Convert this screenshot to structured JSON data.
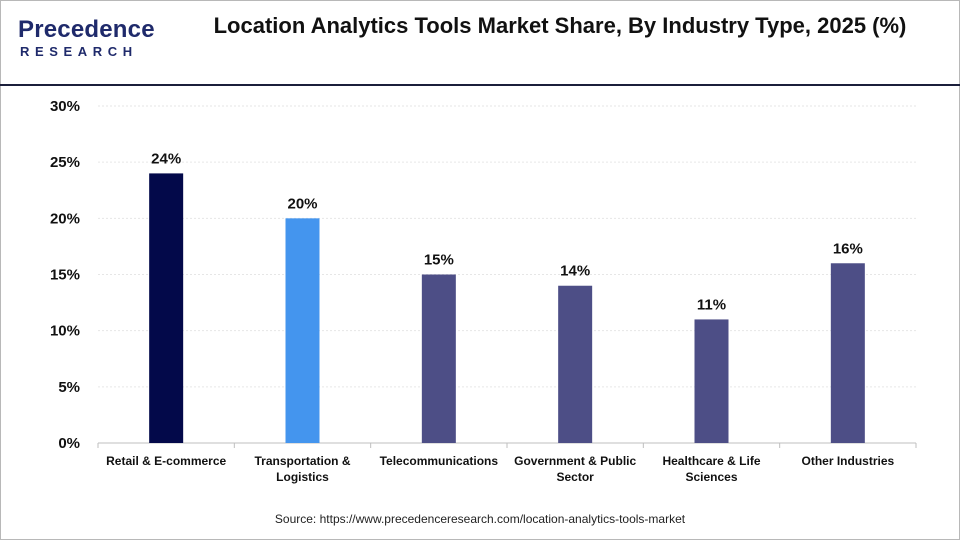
{
  "brand": {
    "line1": "Precedence",
    "line2": "RESEARCH",
    "colors": {
      "text": "#1f2a6b",
      "accent": "#2f7fe0"
    }
  },
  "header": {
    "title": "Location Analytics Tools Market Share, By Industry Type, 2025 (%)"
  },
  "chart_data": {
    "type": "bar",
    "title": "Location Analytics Tools Market Share, By Industry Type, 2025 (%)",
    "xlabel": "",
    "ylabel": "",
    "ylim": [
      0,
      30
    ],
    "yticks": [
      "0%",
      "5%",
      "10%",
      "15%",
      "20%",
      "25%",
      "30%"
    ],
    "ytick_values": [
      0,
      5,
      10,
      15,
      20,
      25,
      30
    ],
    "grid": true,
    "categories": [
      [
        "Retail & E-commerce"
      ],
      [
        "Transportation &",
        "Logistics"
      ],
      [
        "Telecommunications"
      ],
      [
        "Government & Public",
        "Sector"
      ],
      [
        "Healthcare & Life",
        "Sciences"
      ],
      [
        "Other Industries"
      ]
    ],
    "values": [
      24,
      20,
      15,
      14,
      11,
      16
    ],
    "value_labels": [
      "24%",
      "20%",
      "15%",
      "14%",
      "11%",
      "16%"
    ],
    "colors": [
      "#03094a",
      "#4495ee",
      "#4d4e86",
      "#4d4e86",
      "#4d4e86",
      "#4d4e86"
    ]
  },
  "footer": {
    "source": "Source: https://www.precedenceresearch.com/location-analytics-tools-market"
  }
}
